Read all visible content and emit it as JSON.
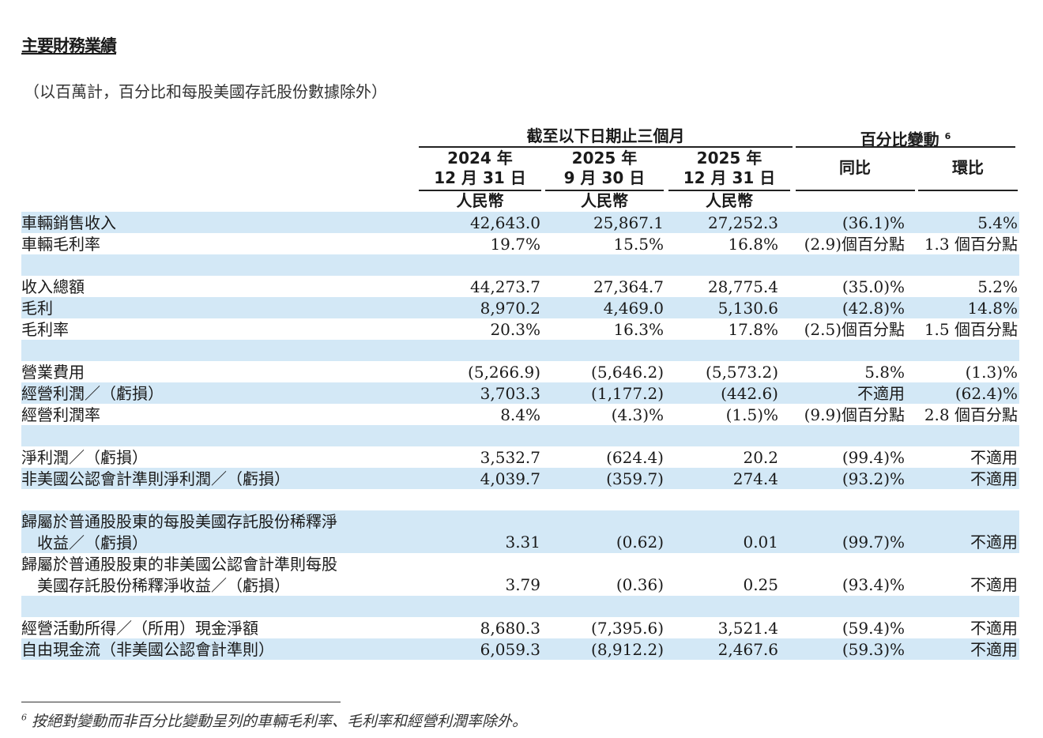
{
  "title": "主要財務業績",
  "subtitle": "（以百萬計，百分比和每股美國存託股份數據除外）",
  "header": {
    "period_group": "截至以下日期止三個月",
    "change_group": "百分比變動",
    "change_footnote_mark": "6",
    "columns": [
      {
        "year": "2024 年",
        "date": "12 月 31 日",
        "currency": "人民幣"
      },
      {
        "year": "2025 年",
        "date": "9 月 30 日",
        "currency": "人民幣"
      },
      {
        "year": "2025 年",
        "date": "12 月 31 日",
        "currency": "人民幣"
      }
    ],
    "yoy": "同比",
    "qoq": "環比"
  },
  "rows": [
    {
      "label": "車輛銷售收入",
      "values": [
        "42,643.0",
        "25,867.1",
        "27,252.3",
        "(36.1)%",
        "5.4%"
      ],
      "shade": true
    },
    {
      "label": "車輛毛利率",
      "values": [
        "19.7%",
        "15.5%",
        "16.8%",
        "(2.9)個百分點",
        "1.3 個百分點"
      ],
      "shade": false
    },
    {
      "label": "",
      "values": [],
      "shade": true
    },
    {
      "label": "收入總額",
      "values": [
        "44,273.7",
        "27,364.7",
        "28,775.4",
        "(35.0)%",
        "5.2%"
      ],
      "shade": false
    },
    {
      "label": "毛利",
      "values": [
        "8,970.2",
        "4,469.0",
        "5,130.6",
        "(42.8)%",
        "14.8%"
      ],
      "shade": true
    },
    {
      "label": "毛利率",
      "values": [
        "20.3%",
        "16.3%",
        "17.8%",
        "(2.5)個百分點",
        "1.5 個百分點"
      ],
      "shade": false
    },
    {
      "label": "",
      "values": [],
      "shade": true
    },
    {
      "label": "營業費用",
      "values": [
        "(5,266.9)",
        "(5,646.2)",
        "(5,573.2)",
        "5.8%",
        "(1.3)%"
      ],
      "shade": false
    },
    {
      "label": "經營利潤／（虧損）",
      "values": [
        "3,703.3",
        "(1,177.2)",
        "(442.6)",
        "不適用",
        "(62.4)%"
      ],
      "shade": true
    },
    {
      "label": "經營利潤率",
      "values": [
        "8.4%",
        "(4.3)%",
        "(1.5)%",
        "(9.9)個百分點",
        "2.8 個百分點"
      ],
      "shade": false
    },
    {
      "label": "",
      "values": [],
      "shade": true
    },
    {
      "label": "淨利潤／（虧損）",
      "values": [
        "3,532.7",
        "(624.4)",
        "20.2",
        "(99.4)%",
        "不適用"
      ],
      "shade": false
    },
    {
      "label": "非美國公認會計準則淨利潤／（虧損）",
      "values": [
        "4,039.7",
        "(359.7)",
        "274.4",
        "(93.2)%",
        "不適用"
      ],
      "shade": true
    },
    {
      "label": "",
      "values": [],
      "shade": false
    },
    {
      "label": "歸屬於普通股股東的每股美國存託股份稀釋淨",
      "label2": "收益／（虧損）",
      "values": [
        "3.31",
        "(0.62)",
        "0.01",
        "(99.7)%",
        "不適用"
      ],
      "shade": true
    },
    {
      "label": "歸屬於普通股股東的非美國公認會計準則每股",
      "label2": "美國存託股份稀釋淨收益／（虧損）",
      "values": [
        "3.79",
        "(0.36)",
        "0.25",
        "(93.4)%",
        "不適用"
      ],
      "shade": false
    },
    {
      "label": "",
      "values": [],
      "shade": true
    },
    {
      "label": "經營活動所得／（所用）現金淨額",
      "values": [
        "8,680.3",
        "(7,395.6)",
        "3,521.4",
        "(59.4)%",
        "不適用"
      ],
      "shade": false
    },
    {
      "label": "自由現金流（非美國公認會計準則）",
      "values": [
        "6,059.3",
        "(8,912.2)",
        "2,467.6",
        "(59.3)%",
        "不適用"
      ],
      "shade": true
    }
  ],
  "footnote": {
    "mark": "6",
    "text": "按絕對變動而非百分比變動呈列的車輛毛利率、毛利率和經營利潤率除外。"
  },
  "colors": {
    "row_shade": "#d3e8f6",
    "text": "#1a1a1a"
  }
}
